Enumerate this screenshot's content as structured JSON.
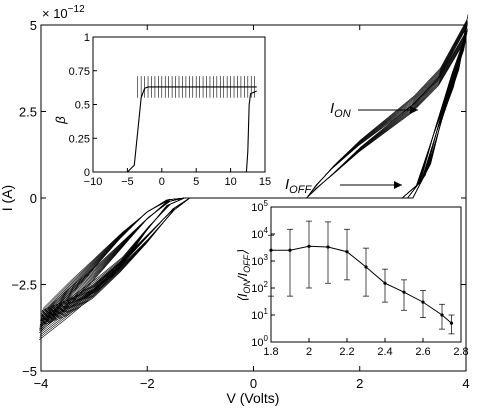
{
  "chart_data": [
    {
      "type": "line",
      "panel": "main",
      "xlabel": "V (Volts)",
      "ylabel": "I (A)",
      "y_multiplier": "× 10",
      "y_multiplier_exp": "−12",
      "xlim": [
        -4,
        4
      ],
      "ylim": [
        -5,
        5
      ],
      "xticks": [
        -4,
        -2,
        0,
        2,
        4
      ],
      "xtick_labels": [
        "−4",
        "−2",
        "0",
        "2",
        "4"
      ],
      "yticks": [
        -5,
        -2.5,
        0,
        2.5,
        5
      ],
      "ytick_labels": [
        "−5",
        "−2.5",
        "0",
        "2.5",
        "5"
      ],
      "annotations": [
        {
          "text": "I",
          "sub": "ON",
          "x": 1.3,
          "y": 2.3
        },
        {
          "text": "I",
          "sub": "OFF",
          "x": 0.4,
          "y": 0.25
        }
      ],
      "curves_up": [
        [
          [
            -4,
            -3.6
          ],
          [
            -3.5,
            -2.9
          ],
          [
            -3,
            -2.2
          ],
          [
            -2.5,
            -1.4
          ],
          [
            -2,
            -0.6
          ],
          [
            -1.6,
            -0.1
          ],
          [
            -1.3,
            0
          ],
          [
            2.9,
            0
          ],
          [
            3.2,
            0.6
          ],
          [
            3.5,
            2.2
          ],
          [
            3.8,
            3.5
          ],
          [
            4,
            4.8
          ]
        ],
        [
          [
            -4,
            -3.8
          ],
          [
            -3.5,
            -3.2
          ],
          [
            -3,
            -2.6
          ],
          [
            -2.5,
            -1.9
          ],
          [
            -2,
            -0.9
          ],
          [
            -1.6,
            -0.2
          ],
          [
            -1.3,
            0
          ],
          [
            3.0,
            0
          ],
          [
            3.3,
            0.9
          ],
          [
            3.6,
            2.6
          ],
          [
            3.9,
            4.0
          ],
          [
            4,
            5.0
          ]
        ],
        [
          [
            -4,
            -3.5
          ],
          [
            -3.5,
            -2.7
          ],
          [
            -3,
            -1.9
          ],
          [
            -2.5,
            -1.1
          ],
          [
            -2,
            -0.4
          ],
          [
            -1.6,
            -0.05
          ],
          [
            -1.3,
            0
          ],
          [
            2.8,
            0
          ],
          [
            3.1,
            0.4
          ],
          [
            3.4,
            1.9
          ],
          [
            3.7,
            3.3
          ],
          [
            4,
            4.6
          ]
        ]
      ],
      "curves_down": [
        [
          [
            4,
            5.0
          ],
          [
            3.5,
            3.6
          ],
          [
            3,
            2.8
          ],
          [
            2.5,
            2.2
          ],
          [
            2,
            1.6
          ],
          [
            1.5,
            0.9
          ],
          [
            1.2,
            0.4
          ],
          [
            1.0,
            0
          ],
          [
            -1.2,
            0
          ],
          [
            -1.5,
            -0.3
          ],
          [
            -2,
            -1.1
          ],
          [
            -2.5,
            -1.9
          ],
          [
            -3,
            -2.6
          ],
          [
            -3.5,
            -3.1
          ],
          [
            -4,
            -3.4
          ]
        ],
        [
          [
            4,
            4.7
          ],
          [
            3.5,
            3.4
          ],
          [
            3,
            2.6
          ],
          [
            2.5,
            2.0
          ],
          [
            2,
            1.4
          ],
          [
            1.5,
            0.7
          ],
          [
            1.2,
            0.3
          ],
          [
            1.0,
            0
          ],
          [
            -1.2,
            0
          ],
          [
            -1.5,
            -0.35
          ],
          [
            -2,
            -1.25
          ],
          [
            -2.5,
            -2.05
          ],
          [
            -3,
            -2.75
          ],
          [
            -3.5,
            -3.25
          ],
          [
            -4,
            -3.55
          ]
        ]
      ]
    },
    {
      "type": "line",
      "panel": "inset-top-left",
      "ylabel": "β",
      "xlim": [
        -10,
        15
      ],
      "ylim": [
        0,
        1
      ],
      "xticks": [
        -10,
        -5,
        0,
        5,
        10,
        15
      ],
      "xtick_labels": [
        "−10",
        "−5",
        "0",
        "5",
        "10",
        "15"
      ],
      "yticks": [
        0,
        0.25,
        0.5,
        0.75,
        1
      ],
      "ytick_labels": [
        "0",
        "0.25",
        "0.5",
        "0.75",
        "1"
      ],
      "series_rise": [
        [
          -5,
          0
        ],
        [
          -4,
          0.05
        ],
        [
          -3.5,
          0.3
        ],
        [
          -3,
          0.55
        ],
        [
          -2.5,
          0.62
        ],
        [
          -2,
          0.63
        ],
        [
          13.8,
          0.63
        ]
      ],
      "series_fall": [
        [
          -10,
          0
        ],
        [
          12.3,
          0
        ],
        [
          12.5,
          0.15
        ],
        [
          12.7,
          0.5
        ],
        [
          12.9,
          0.58
        ],
        [
          13.8,
          0.6
        ]
      ],
      "errorbar_x_start": -3.5,
      "errorbar_x_end": 13.8,
      "errorbar_step": 0.5,
      "errorbar_halfwidth": 0.08
    },
    {
      "type": "line",
      "panel": "inset-bottom-right",
      "ylabel": "⟨I_ON/I_OFF⟩",
      "xlim": [
        1.8,
        2.8
      ],
      "ylim_log10": [
        0,
        5
      ],
      "xticks": [
        1.8,
        2,
        2.2,
        2.4,
        2.6,
        2.8
      ],
      "xtick_labels": [
        "1.8",
        "2",
        "2.2",
        "2.4",
        "2.6",
        "2.8"
      ],
      "yticks_log10": [
        0,
        1,
        2,
        3,
        4,
        5
      ],
      "x": [
        1.8,
        1.9,
        2.0,
        2.1,
        2.2,
        2.3,
        2.4,
        2.5,
        2.6,
        2.7,
        2.75
      ],
      "y": [
        2500,
        2500,
        3500,
        3300,
        2200,
        600,
        150,
        70,
        30,
        10,
        5
      ],
      "yerr_low": [
        50,
        50,
        100,
        150,
        200,
        50,
        30,
        15,
        8,
        3,
        2
      ],
      "yerr_high": [
        9000,
        15000,
        30000,
        28000,
        15000,
        3000,
        500,
        200,
        80,
        25,
        10
      ]
    }
  ]
}
